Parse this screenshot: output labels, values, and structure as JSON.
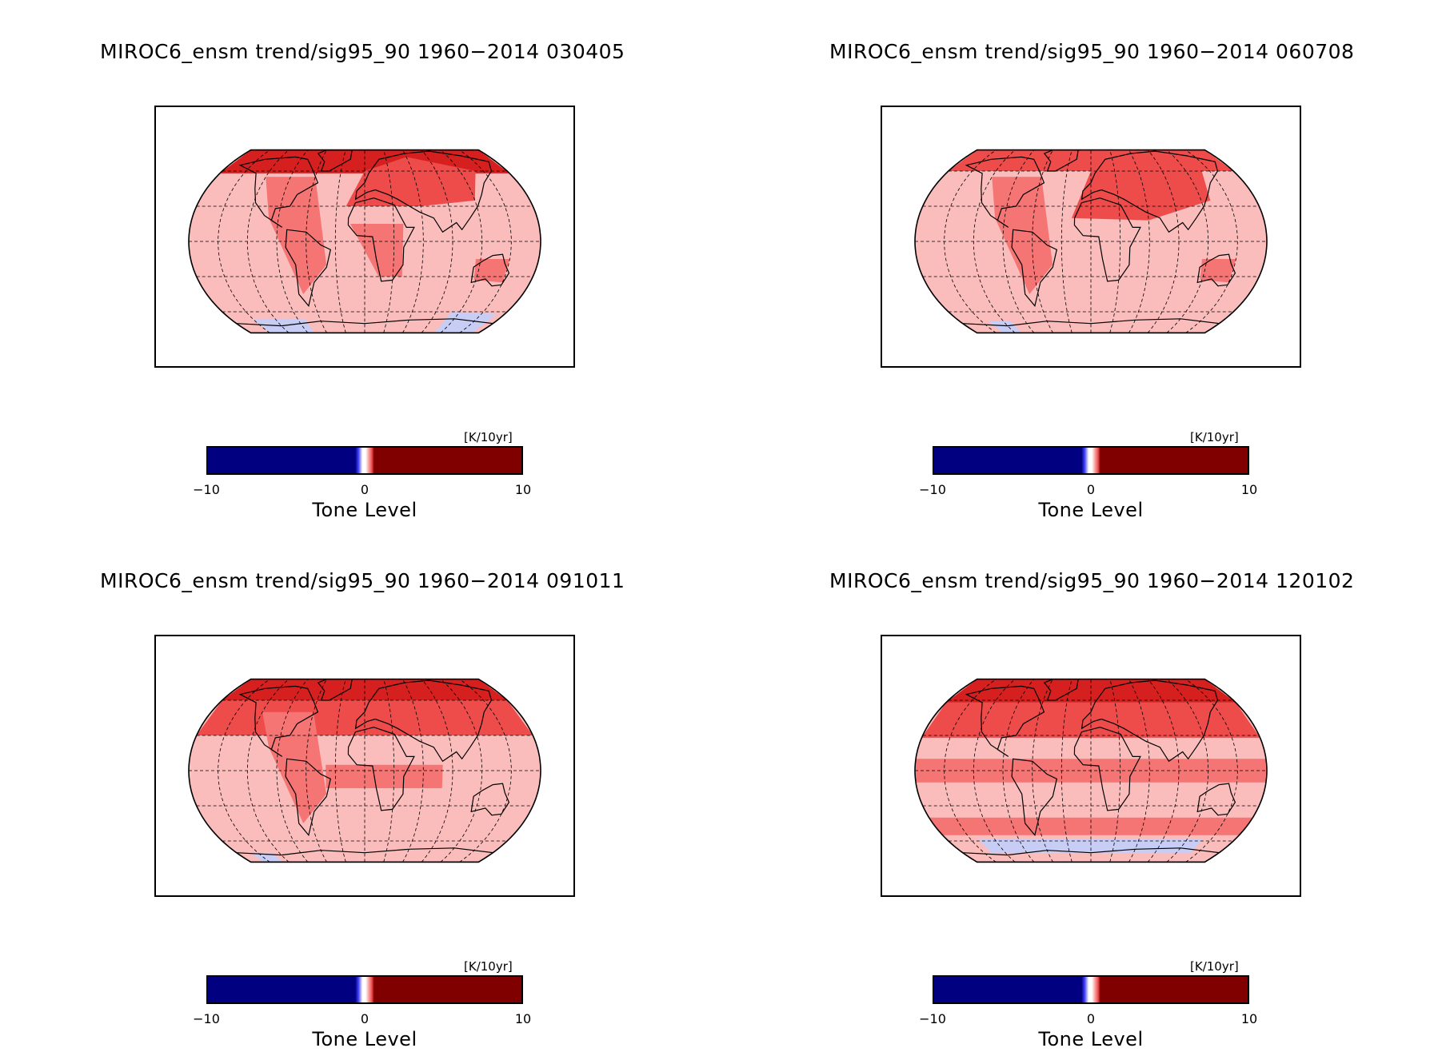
{
  "panels": [
    {
      "title": "MIROC6_ensm trend/sig95_90 1960−2014 030405",
      "variant": "mam"
    },
    {
      "title": "MIROC6_ensm trend/sig95_90 1960−2014 060708",
      "variant": "jja"
    },
    {
      "title": "MIROC6_ensm trend/sig95_90 1960−2014 091011",
      "variant": "son"
    },
    {
      "title": "MIROC6_ensm trend/sig95_90 1960−2014 120102",
      "variant": "djf"
    }
  ],
  "colorbar": {
    "units": "[K/10yr]",
    "title": "Tone Level",
    "ticks": [
      "−10",
      "0",
      "10"
    ],
    "tick_values": [
      -10,
      0,
      10
    ],
    "range": [
      -10,
      10
    ]
  },
  "colors": {
    "light_red": "#fbbcbc",
    "mid_red": "#f57474",
    "red": "#ee4b4b",
    "dark_red": "#d61f1f",
    "light_blue": "#c8cdf5",
    "navy": "#000080",
    "maroon": "#800000"
  }
}
